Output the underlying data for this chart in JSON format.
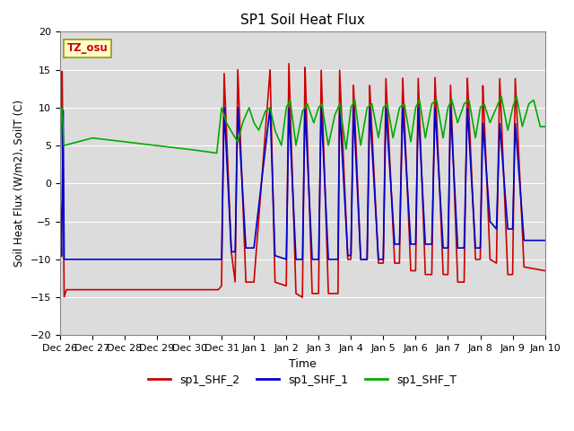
{
  "title": "SP1 Soil Heat Flux",
  "xlabel": "Time",
  "ylabel": "Soil Heat Flux (W/m2), SoilT (C)",
  "ylim": [
    -20,
    20
  ],
  "yticks": [
    -20,
    -15,
    -10,
    -5,
    0,
    5,
    10,
    15,
    20
  ],
  "background_color": "#dcdcdc",
  "tz_label": "TZ_osu",
  "legend": [
    "sp1_SHF_2",
    "sp1_SHF_1",
    "sp1_SHF_T"
  ],
  "colors": {
    "sp1_SHF_2": "#cc0000",
    "sp1_SHF_1": "#0000cc",
    "sp1_SHF_T": "#00aa00"
  },
  "x_tick_labels": [
    "Dec 26",
    "Dec 27",
    "Dec 28",
    "Dec 29",
    "Dec 30",
    "Dec 31",
    "Jan 1",
    "Jan 2",
    "Jan 3",
    "Jan 4",
    "Jan 5",
    "Jan 6",
    "Jan 7",
    "Jan 8",
    "Jan 9",
    "Jan 10"
  ],
  "x_tick_positions": [
    0,
    1,
    2,
    3,
    4,
    5,
    6,
    7,
    8,
    9,
    10,
    11,
    12,
    13,
    14,
    15
  ]
}
